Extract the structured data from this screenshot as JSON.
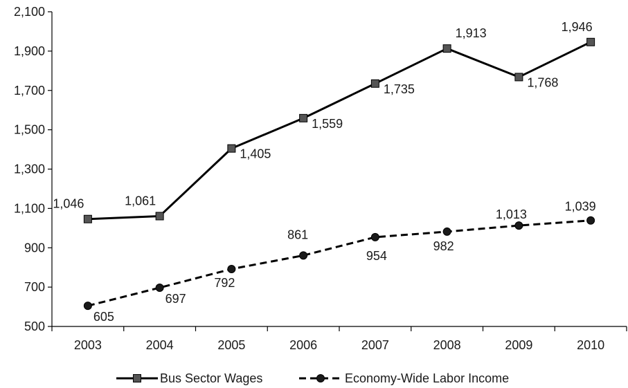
{
  "chart_data": {
    "type": "line",
    "title": "",
    "xlabel": "",
    "ylabel": "",
    "categories": [
      "2003",
      "2004",
      "2005",
      "2006",
      "2007",
      "2008",
      "2009",
      "2010"
    ],
    "ylim": [
      500,
      2100
    ],
    "yticks": [
      500,
      700,
      900,
      1100,
      1300,
      1500,
      1700,
      1900,
      2100
    ],
    "ytick_labels": [
      "500",
      "700",
      "900",
      "1,100",
      "1,300",
      "1,500",
      "1,700",
      "1,900",
      "2,100"
    ],
    "grid": false,
    "legend_position": "bottom",
    "series": [
      {
        "name": "Bus Sector Wages",
        "values": [
          1046,
          1061,
          1405,
          1559,
          1735,
          1913,
          1768,
          1946
        ],
        "value_labels": [
          "1,046",
          "1,061",
          "1,405",
          "1,559",
          "1,735",
          "1,913",
          "1,768",
          "1,946"
        ],
        "line_style": "solid",
        "marker": "square",
        "color": "#000000",
        "marker_color": "#555555"
      },
      {
        "name": "Economy-Wide Labor Income",
        "values": [
          605,
          697,
          792,
          861,
          954,
          982,
          1013,
          1039
        ],
        "value_labels": [
          "605",
          "697",
          "792",
          "861",
          "954",
          "982",
          "1,013",
          "1,039"
        ],
        "line_style": "dashed",
        "marker": "circle",
        "color": "#000000",
        "marker_color": "#1a1a1a"
      }
    ]
  }
}
